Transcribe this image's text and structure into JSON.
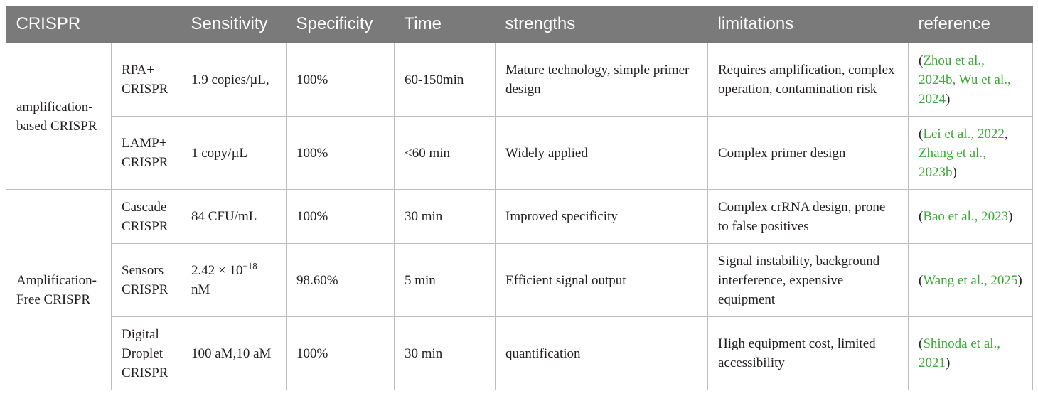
{
  "header": {
    "c1": "CRISPR",
    "c2": "Sensitivity",
    "c3": "Specificity",
    "c4": "Time",
    "c5": "strengths",
    "c6": "limitations",
    "c7": "reference"
  },
  "groups": {
    "amp": "amplification-based CRISPR",
    "free": "Amplification-Free CRISPR"
  },
  "rows": [
    {
      "method": "RPA+ CRISPR",
      "sensitivity": "1.9 copies/µL,",
      "specificity": "100%",
      "time": "60-150min",
      "strengths": "Mature technology, simple primer design",
      "limitations": "Requires amplification, complex operation, contamination risk",
      "ref_open": "(",
      "ref_a": "Zhou et al., 2024b",
      "ref_sep": ", ",
      "ref_b": "Wu et al., 2024",
      "ref_close": ")"
    },
    {
      "method": "LAMP+ CRISPR",
      "sensitivity": "1 copy/µL",
      "specificity": "100%",
      "time": "<60 min",
      "strengths": "Widely applied",
      "limitations": "Complex primer design",
      "ref_open": "(",
      "ref_a": "Lei et al., 2022",
      "ref_sep": ", ",
      "ref_b": "Zhang et al., 2023b",
      "ref_close": ")"
    },
    {
      "method": "Cascade CRISPR",
      "sensitivity": "84 CFU/mL",
      "specificity": "100%",
      "time": "30 min",
      "strengths": "Improved specificity",
      "limitations": "Complex crRNA design, prone to false positives",
      "ref_open": "(",
      "ref_a": "Bao et al., 2023",
      "ref_close": ")"
    },
    {
      "method": "Sensors CRISPR",
      "sensitivity_base": "2.42 × 10",
      "sensitivity_exp": "−18",
      "sensitivity_unit": "nM",
      "specificity": "98.60%",
      "time": "5 min",
      "strengths": "Efficient signal output",
      "limitations": "Signal instability, background interference, expensive equipment",
      "ref_open": "(",
      "ref_a": "Wang et al., 2025",
      "ref_close": ")"
    },
    {
      "method": "Digital Droplet CRISPR",
      "sensitivity": "100 aM,10 aM",
      "specificity": "100%",
      "time": "30 min",
      "strengths": "quantification",
      "limitations": "High equipment cost, limited accessibility",
      "ref_open": "(",
      "ref_a": "Shinoda et al., 2021",
      "ref_close": ")"
    }
  ],
  "colors": {
    "header_bg": "#7a7a7a",
    "header_text": "#ffffff",
    "border": "#bdbdbd",
    "reference_link": "#3aa935",
    "body_text": "#231f20"
  }
}
